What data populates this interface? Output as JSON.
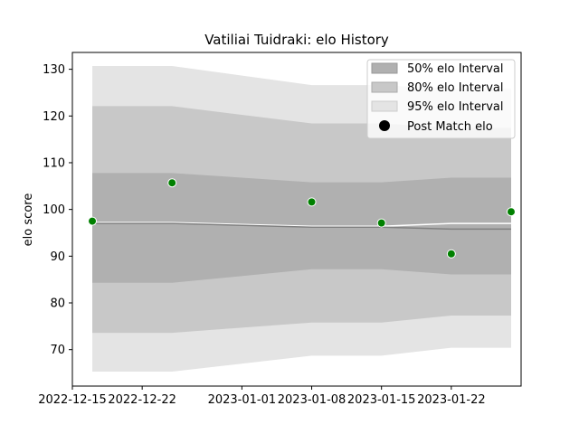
{
  "chart_data": {
    "type": "area",
    "title": "Vatiliai Tuidraki: elo History",
    "xlabel": "",
    "ylabel": "elo score",
    "xlim": [
      "2022-12-15",
      "2023-01-29"
    ],
    "ylim": [
      62.2,
      133.6
    ],
    "x_ticks": [
      "2022-12-15",
      "2022-12-22",
      "2023-01-01",
      "2023-01-08",
      "2023-01-15",
      "2023-01-22"
    ],
    "y_ticks": [
      70,
      80,
      90,
      100,
      110,
      120,
      130
    ],
    "grid": false,
    "legend_position": "upper right",
    "colors": {
      "band50": "#b0b0b0",
      "band80": "#c8c8c8",
      "band95": "#e4e4e4",
      "median": "#808080",
      "points": "#008000"
    },
    "dates": [
      "2022-12-17",
      "2022-12-25",
      "2023-01-08",
      "2023-01-15",
      "2023-01-22",
      "2023-01-28"
    ],
    "bands": [
      {
        "name": "95% elo Interval",
        "lower": [
          65.3,
          65.3,
          68.7,
          68.7,
          70.4,
          70.4
        ],
        "upper": [
          130.7,
          130.7,
          126.6,
          126.6,
          125.8,
          125.8
        ]
      },
      {
        "name": "80% elo Interval",
        "lower": [
          73.6,
          73.6,
          75.8,
          75.8,
          77.3,
          77.3
        ],
        "upper": [
          122.1,
          122.1,
          118.4,
          118.4,
          117.5,
          117.5
        ]
      },
      {
        "name": "50% elo Interval",
        "lower": [
          84.3,
          84.3,
          87.2,
          87.2,
          86.1,
          86.1
        ],
        "upper": [
          107.8,
          107.8,
          105.8,
          105.8,
          106.8,
          106.8
        ]
      }
    ],
    "median": [
      97.0,
      97.0,
      96.2,
      96.2,
      95.8,
      95.8
    ],
    "post_match_line": [
      97.2,
      97.2,
      96.4,
      96.4,
      97.0,
      97.0
    ],
    "points": {
      "name": "Post Match elo",
      "dates": [
        "2022-12-17",
        "2022-12-25",
        "2023-01-08",
        "2023-01-15",
        "2023-01-22",
        "2023-01-28"
      ],
      "values": [
        97.5,
        105.7,
        101.6,
        97.1,
        90.5,
        99.5
      ]
    },
    "legend": [
      "50% elo Interval",
      "80% elo Interval",
      "95% elo Interval",
      "Post Match elo"
    ]
  }
}
